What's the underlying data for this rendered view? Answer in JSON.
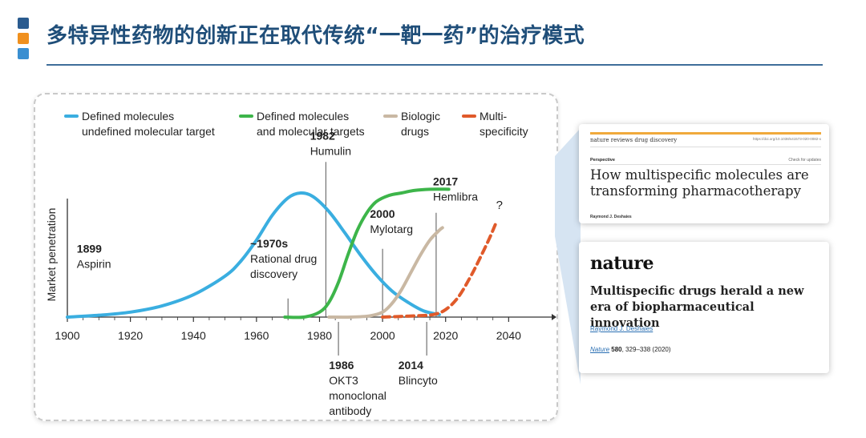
{
  "header": {
    "title": "多特异性药物的创新正在取代传统“一靶一药”的治疗模式",
    "bullet_colors": [
      "#2a5b8f",
      "#f0901e",
      "#3a8fd1"
    ]
  },
  "chart_data": {
    "type": "line",
    "ylabel": "Market penetration",
    "xlim": [
      1900,
      2045
    ],
    "ylim": [
      0,
      1
    ],
    "x_ticks": [
      1900,
      1920,
      1940,
      1960,
      1980,
      2000,
      2020,
      2040
    ],
    "legend_position": "top",
    "series": [
      {
        "name": "Defined molecules\nundefined molecular target",
        "color": "#3aaee0",
        "style": "solid",
        "x": [
          1900,
          1910,
          1920,
          1930,
          1940,
          1950,
          1955,
          1960,
          1965,
          1970,
          1974,
          1978,
          1983,
          1988,
          1993,
          1998,
          2003,
          2008,
          2013,
          2018
        ],
        "y": [
          0.0,
          0.015,
          0.04,
          0.09,
          0.18,
          0.33,
          0.45,
          0.62,
          0.82,
          0.96,
          1.0,
          0.97,
          0.85,
          0.68,
          0.5,
          0.34,
          0.21,
          0.12,
          0.05,
          0.02
        ]
      },
      {
        "name": "Defined molecules\nand molecular targets",
        "color": "#3db54a",
        "style": "solid",
        "x": [
          1969,
          1975,
          1980,
          1983,
          1986,
          1989,
          1992,
          1995,
          1998,
          2002,
          2006,
          2010,
          2015,
          2021
        ],
        "y": [
          0.0,
          0.0,
          0.04,
          0.12,
          0.28,
          0.5,
          0.7,
          0.84,
          0.93,
          0.98,
          1.0,
          1.02,
          1.03,
          1.03
        ]
      },
      {
        "name": "Biologic\ndrugs",
        "color": "#c9b8a3",
        "style": "solid",
        "x": [
          1983,
          1990,
          1996,
          2000,
          2003,
          2006,
          2009,
          2012,
          2015,
          2018,
          2019
        ],
        "y": [
          0.0,
          0.0,
          0.01,
          0.04,
          0.11,
          0.22,
          0.36,
          0.5,
          0.62,
          0.7,
          0.72
        ]
      },
      {
        "name": "Multi-\nspecificity",
        "color": "#e05a2a",
        "style": "dashed",
        "x": [
          2000,
          2010,
          2016,
          2020,
          2024,
          2028,
          2031,
          2034,
          2036
        ],
        "y": [
          0.0,
          0.01,
          0.02,
          0.06,
          0.16,
          0.33,
          0.48,
          0.64,
          0.76
        ]
      }
    ],
    "unknown_marker": {
      "x": 2036,
      "y": 0.82,
      "label": "?"
    },
    "event_lines": [
      {
        "x": 1970,
        "top": 0.15
      },
      {
        "x": 1982,
        "top": 1.25
      },
      {
        "x": 2000,
        "top": 0.55
      },
      {
        "x": 2017,
        "top": 0.84
      }
    ],
    "annotations": [
      {
        "year": "1899",
        "text": "Aspirin",
        "x": 1903,
        "y": 0.52
      },
      {
        "year": "~1970s",
        "text": "Rational drug\ndiscovery",
        "x": 1958,
        "y": 0.56
      },
      {
        "year": "1982",
        "text": "Humulin",
        "x": 1977,
        "y": 1.43
      },
      {
        "year": "2000",
        "text": "Mylotarg",
        "x": 1996,
        "y": 0.8
      },
      {
        "year": "2017",
        "text": "Hemlibra",
        "x": 2016,
        "y": 1.06
      },
      {
        "year": "1986",
        "text": "OKT3\nmonoclonal\nantibody",
        "x": 1983,
        "y": -0.42
      },
      {
        "year": "2014",
        "text": "Blincyto",
        "x": 2005,
        "y": -0.42
      }
    ]
  },
  "papers": [
    {
      "journal": "nature reviews drug discovery",
      "doi": "https://doi.org/10.1038/s41573-020-0082-x",
      "type": "Perspective",
      "check": "Check for updates",
      "title": "How multispecific molecules are transforming pharmacotherapy",
      "author": "Raymond J. Deshaies"
    },
    {
      "journal": "nature",
      "title": "Multispecific drugs herald a new era of biopharmaceutical innovation",
      "author": "Raymond J. Deshaies",
      "citation_journal": "Nature",
      "citation_volume": "580",
      "citation_rest": ", 329–338 (2020)"
    }
  ]
}
